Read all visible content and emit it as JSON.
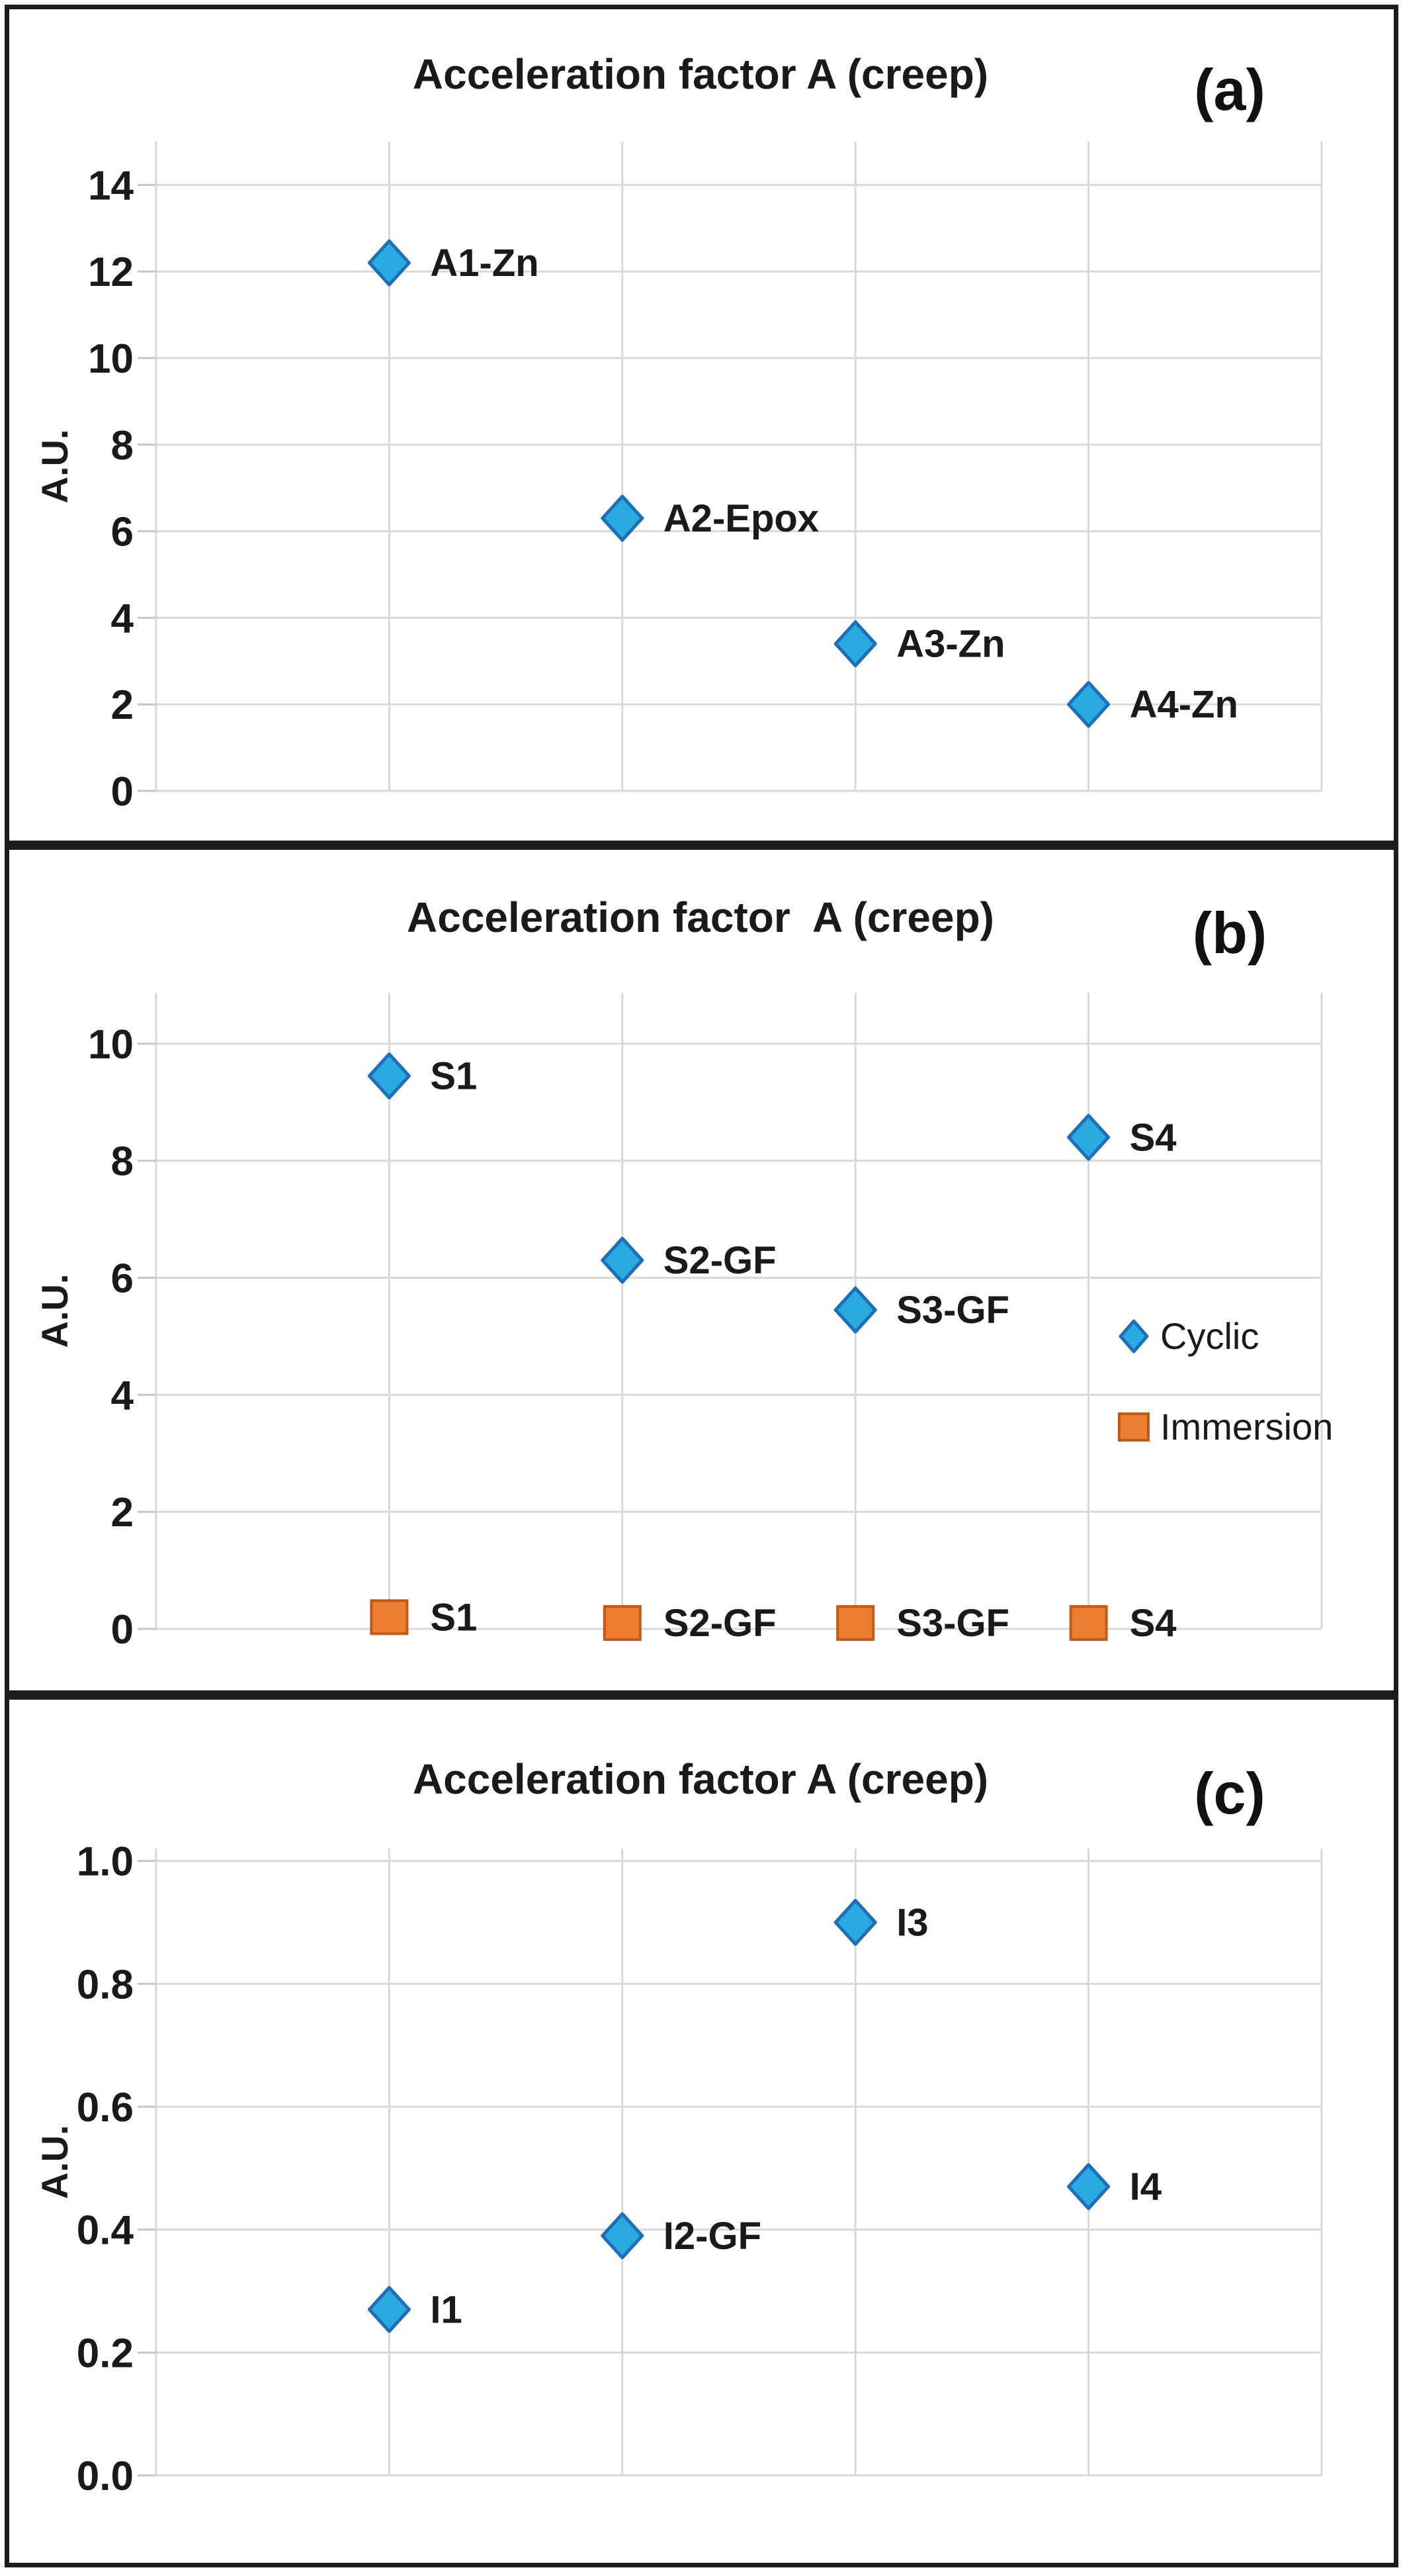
{
  "figure": {
    "background": "#ffffff",
    "border_color": "#1c1c1c"
  },
  "colors": {
    "cyclic_fill": "#29ABE2",
    "cyclic_stroke": "#1E6FB8",
    "immersion_fill": "#ED7D31",
    "immersion_stroke": "#BF5B17",
    "gridline": "#D9D9D9",
    "text": "#1a1a1a"
  },
  "chart_data": [
    {
      "type": "scatter",
      "panel_label": "(a)",
      "title": "Acceleration factor A (creep)",
      "ylabel": "A.U.",
      "xlabel": "",
      "grid": true,
      "legend_position": "none",
      "y_axis": {
        "ticks": [
          {
            "value": 0,
            "label": "0"
          },
          {
            "value": 2,
            "label": "2"
          },
          {
            "value": 4,
            "label": "4"
          },
          {
            "value": 6,
            "label": "6"
          },
          {
            "value": 8,
            "label": "8"
          },
          {
            "value": 10,
            "label": "10"
          },
          {
            "value": 12,
            "label": "12"
          },
          {
            "value": 14,
            "label": "14"
          }
        ],
        "ylim": [
          0,
          15.0
        ]
      },
      "series": [
        {
          "name": "Cyclic",
          "marker": "diamond",
          "fill": "#29ABE2",
          "stroke": "#1E6FB8",
          "points": [
            {
              "label": "A1-Zn",
              "x_slot": 1,
              "value": 12.2
            },
            {
              "label": "A2-Epox",
              "x_slot": 2,
              "value": 6.3
            },
            {
              "label": "A3-Zn",
              "x_slot": 3,
              "value": 3.4
            },
            {
              "label": "A4-Zn",
              "x_slot": 4,
              "value": 2.0
            }
          ]
        }
      ],
      "legend": null
    },
    {
      "type": "scatter",
      "panel_label": "(b)",
      "title": "Acceleration factor  A (creep)",
      "ylabel": "A.U.",
      "xlabel": "",
      "grid": true,
      "legend_position": "right-inside",
      "y_axis": {
        "ticks": [
          {
            "value": 0,
            "label": "0"
          },
          {
            "value": 2,
            "label": "2"
          },
          {
            "value": 4,
            "label": "4"
          },
          {
            "value": 6,
            "label": "6"
          },
          {
            "value": 8,
            "label": "8"
          },
          {
            "value": 10,
            "label": "10"
          }
        ],
        "ylim": [
          0,
          10.87
        ]
      },
      "series": [
        {
          "name": "Cyclic",
          "marker": "diamond",
          "fill": "#29ABE2",
          "stroke": "#1E6FB8",
          "points": [
            {
              "label": "S1",
              "x_slot": 1,
              "value": 9.45
            },
            {
              "label": "S2-GF",
              "x_slot": 2,
              "value": 6.3
            },
            {
              "label": "S3-GF",
              "x_slot": 3,
              "value": 5.45
            },
            {
              "label": "S4",
              "x_slot": 4,
              "value": 8.4
            }
          ]
        },
        {
          "name": "Immersion",
          "marker": "square",
          "fill": "#ED7D31",
          "stroke": "#BF5B17",
          "points": [
            {
              "label": "S1",
              "x_slot": 1,
              "value": 0.2
            },
            {
              "label": "S2-GF",
              "x_slot": 2,
              "value": 0.1
            },
            {
              "label": "S3-GF",
              "x_slot": 3,
              "value": 0.1
            },
            {
              "label": "S4",
              "x_slot": 4,
              "value": 0.1
            }
          ]
        }
      ],
      "legend": {
        "items": [
          {
            "label": "Cyclic",
            "marker": "diamond",
            "fill": "#29ABE2",
            "stroke": "#1E6FB8"
          },
          {
            "label": "Immersion",
            "marker": "square",
            "fill": "#ED7D31",
            "stroke": "#BF5B17"
          }
        ]
      }
    },
    {
      "type": "scatter",
      "panel_label": "(c)",
      "title": "Acceleration factor A (creep)",
      "ylabel": "A.U.",
      "xlabel": "",
      "grid": true,
      "legend_position": "none",
      "y_axis": {
        "ticks": [
          {
            "value": 0.0,
            "label": "0.0"
          },
          {
            "value": 0.2,
            "label": "0.2"
          },
          {
            "value": 0.4,
            "label": "0.4"
          },
          {
            "value": 0.6,
            "label": "0.6"
          },
          {
            "value": 0.8,
            "label": "0.8"
          },
          {
            "value": 1.0,
            "label": "1.0"
          }
        ],
        "ylim": [
          0,
          1.02
        ]
      },
      "series": [
        {
          "name": "Cyclic",
          "marker": "diamond",
          "fill": "#29ABE2",
          "stroke": "#1E6FB8",
          "points": [
            {
              "label": "I1",
              "x_slot": 1,
              "value": 0.27
            },
            {
              "label": "I2-GF",
              "x_slot": 2,
              "value": 0.39
            },
            {
              "label": "I3",
              "x_slot": 3,
              "value": 0.9
            },
            {
              "label": "I4",
              "x_slot": 4,
              "value": 0.47
            }
          ]
        }
      ],
      "legend": null
    }
  ]
}
